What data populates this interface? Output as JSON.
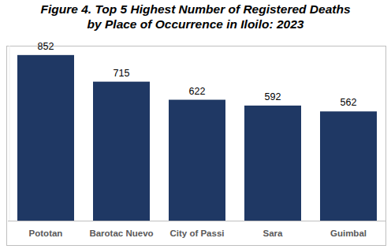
{
  "chart_data": {
    "type": "bar",
    "title": "Figure 4. Top 5 Highest Number of Registered Deaths\nby Place of Occurrence in Iloilo: 2023",
    "categories": [
      "Pototan",
      "Barotac Nuevo",
      "City of Passi",
      "Sara",
      "Guimbal"
    ],
    "values": [
      852,
      715,
      622,
      592,
      562
    ],
    "color": "#1f3864",
    "ylim": [
      0,
      900
    ],
    "grid": false,
    "data_labels": true,
    "tick_labels": "x"
  }
}
